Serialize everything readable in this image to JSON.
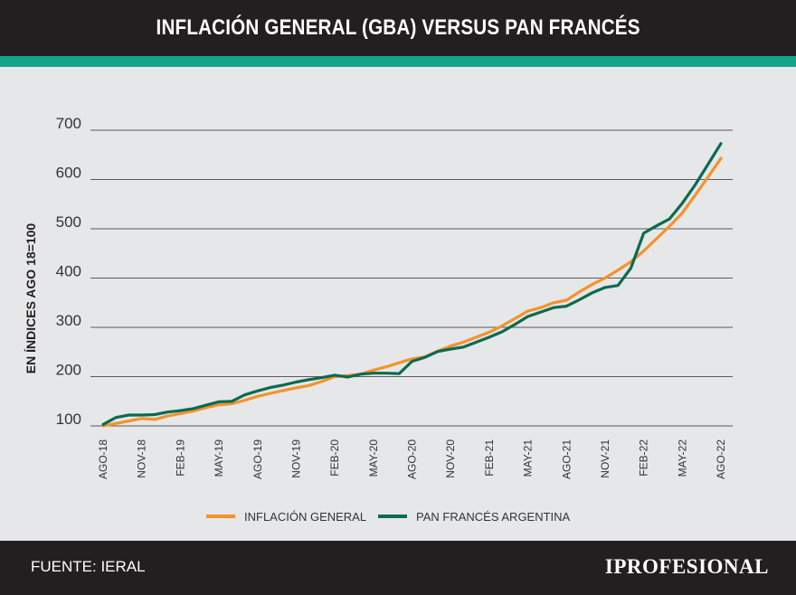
{
  "header": {
    "title": "INFLACIÓN GENERAL (GBA) VERSUS PAN FRANCÉS"
  },
  "footer": {
    "source": "FUENTE: IERAL",
    "brand": "IPROFESIONAL"
  },
  "colors": {
    "header_bg": "#231f20",
    "accent": "#13a58c",
    "inflation": "#f4922c",
    "bread": "#0b6a50",
    "grid": "#5a5a5a",
    "text": "#333333"
  },
  "chart_data": {
    "type": "line",
    "title": "INFLACIÓN GENERAL (GBA) VERSUS PAN FRANCÉS",
    "ylabel": "EN ÍNDICES AGO 18=100",
    "xlabel": "",
    "ylim": [
      100,
      700
    ],
    "yticks": [
      100,
      200,
      300,
      400,
      500,
      600,
      700
    ],
    "tick_labels": [
      "AGO-18",
      "NOV-18",
      "FEB-19",
      "MAY-19",
      "AGO-19",
      "NOV-19",
      "FEB-20",
      "MAY-20",
      "AGO-20",
      "NOV-20",
      "FEB-21",
      "MAY-21",
      "AGO-21",
      "NOV-21",
      "FEB-22",
      "MAY-22",
      "AGO-22"
    ],
    "x": [
      "AGO-18",
      "SEP-18",
      "OCT-18",
      "NOV-18",
      "DIC-18",
      "ENE-19",
      "FEB-19",
      "MAR-19",
      "ABR-19",
      "MAY-19",
      "JUN-19",
      "JUL-19",
      "AGO-19",
      "SEP-19",
      "OCT-19",
      "NOV-19",
      "DIC-19",
      "ENE-20",
      "FEB-20",
      "MAR-20",
      "ABR-20",
      "MAY-20",
      "JUN-20",
      "JUL-20",
      "AGO-20",
      "SEP-20",
      "OCT-20",
      "NOV-20",
      "DIC-20",
      "ENE-21",
      "FEB-21",
      "MAR-21",
      "ABR-21",
      "MAY-21",
      "JUN-21",
      "JUL-21",
      "AGO-21",
      "SEP-21",
      "OCT-21",
      "NOV-21",
      "DIC-21",
      "ENE-22",
      "FEB-22",
      "MAR-22",
      "ABR-22",
      "MAY-22",
      "JUN-22",
      "JUL-22",
      "AGO-22"
    ],
    "series": [
      {
        "name": "INFLACIÓN GENERAL",
        "color": "#f4922c",
        "values": [
          100,
          105,
          110,
          115,
          113,
          120,
          125,
          130,
          137,
          143,
          145,
          152,
          160,
          166,
          172,
          177,
          182,
          190,
          200,
          202,
          205,
          213,
          220,
          228,
          236,
          240,
          252,
          262,
          270,
          280,
          290,
          303,
          318,
          333,
          340,
          350,
          355,
          372,
          387,
          400,
          416,
          433,
          455,
          480,
          505,
          532,
          568,
          605,
          643
        ]
      },
      {
        "name": "PAN FRANCÉS ARGENTINA",
        "color": "#0b6a50",
        "values": [
          103,
          117,
          122,
          122,
          123,
          128,
          131,
          135,
          142,
          149,
          150,
          163,
          171,
          178,
          183,
          189,
          194,
          198,
          203,
          199,
          205,
          207,
          207,
          206,
          231,
          239,
          251,
          256,
          260,
          270,
          280,
          291,
          306,
          322,
          331,
          340,
          343,
          356,
          370,
          381,
          385,
          420,
          491,
          506,
          520,
          552,
          589,
          631,
          673
        ]
      }
    ],
    "legend": "bottom"
  }
}
